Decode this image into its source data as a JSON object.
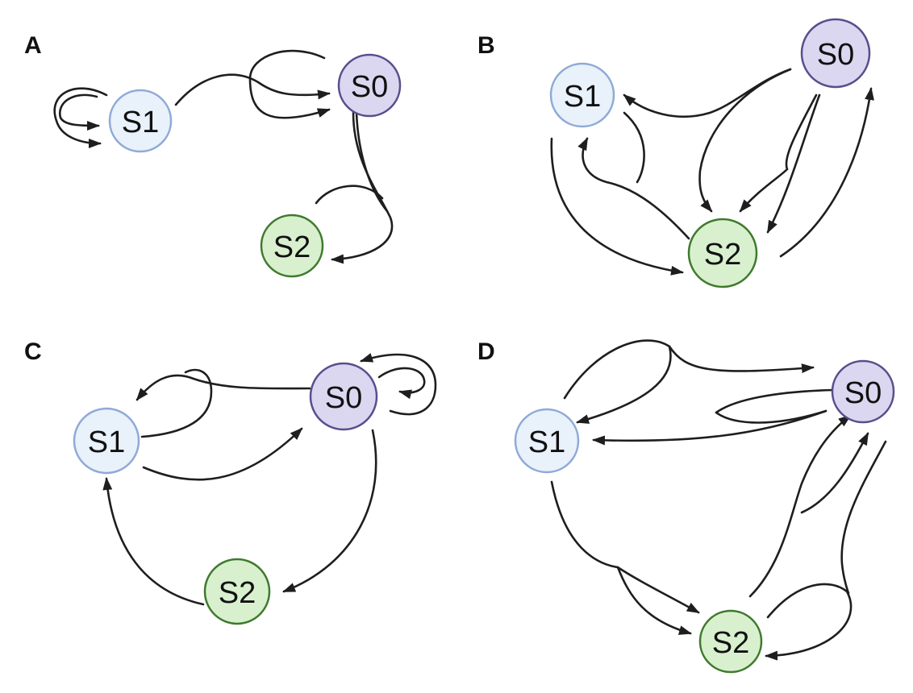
{
  "panels": [
    {
      "label": "A",
      "nodes": {
        "s0": "S0",
        "s1": "S1",
        "s2": "S2"
      }
    },
    {
      "label": "B",
      "nodes": {
        "s0": "S0",
        "s1": "S1",
        "s2": "S2"
      }
    },
    {
      "label": "C",
      "nodes": {
        "s0": "S0",
        "s1": "S1",
        "s2": "S2"
      }
    },
    {
      "label": "D",
      "nodes": {
        "s0": "S0",
        "s1": "S1",
        "s2": "S2"
      }
    }
  ],
  "colors": {
    "s0_fill": "#dcd7f0",
    "s0_stroke": "#584e8c",
    "s1_fill": "#e9f1fb",
    "s1_stroke": "#8faad7",
    "s2_fill": "#d9f0cf",
    "s2_stroke": "#3f7a2d",
    "edge": "#1e1e1e"
  }
}
